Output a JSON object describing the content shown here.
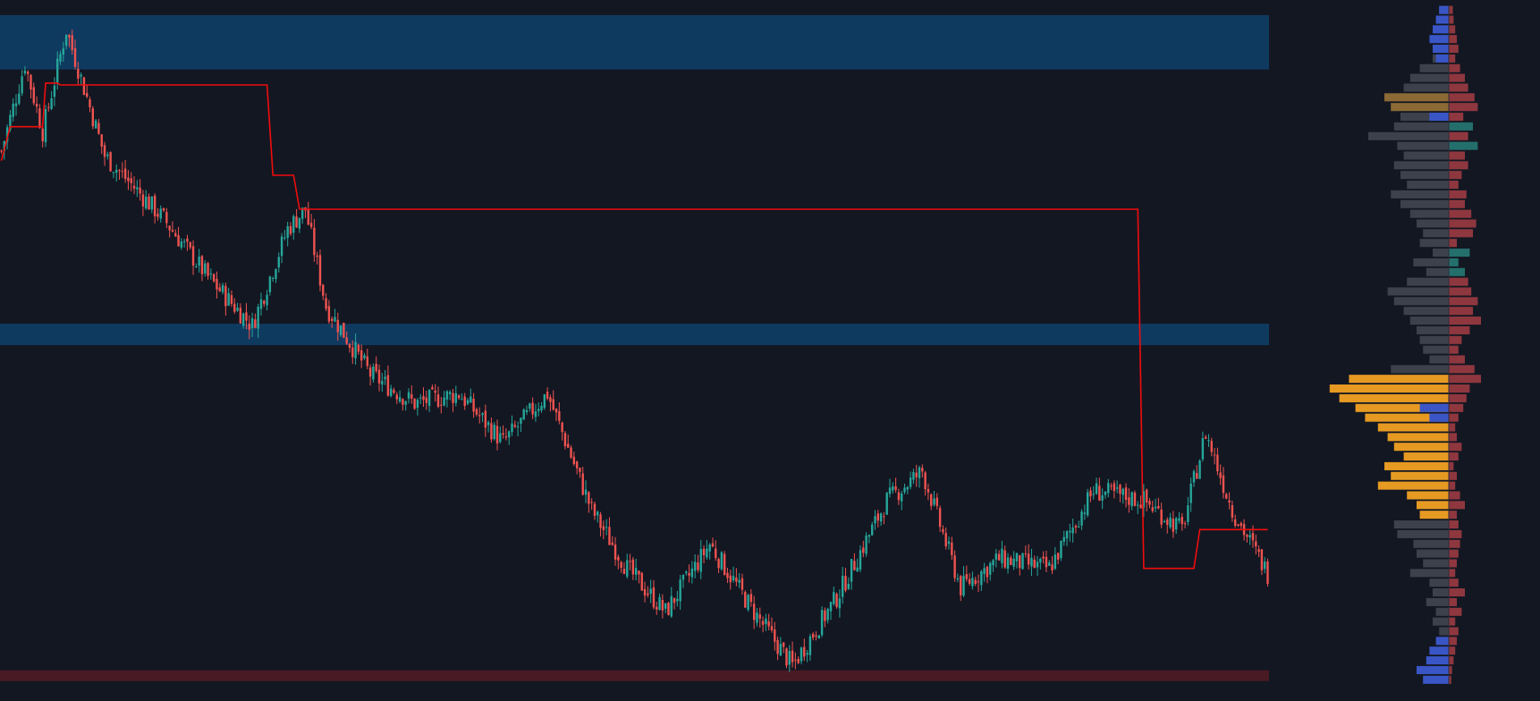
{
  "chart_data": {
    "type": "candlestick",
    "title": "",
    "xlabel": "",
    "ylabel": "",
    "ylim": [
      0,
      700
    ],
    "grid": false,
    "legend": "none",
    "colors": {
      "background": "#131722",
      "up": "#26a69a",
      "down": "#ef5350",
      "stop_line": "#f00c0c",
      "zone_supply": "#0f3a60",
      "zone_demand": "#4a1a24",
      "profile_neutral": "#3d414c",
      "profile_buy": "#3a56c6",
      "profile_sell": "#b94349",
      "profile_up": "#2b8e85",
      "profile_poc_band": "#e69a22",
      "profile_hvn": "#8c6a35"
    },
    "zones": [
      {
        "kind": "supply",
        "top": 690,
        "bottom": 634
      },
      {
        "kind": "supply",
        "top": 372,
        "bottom": 350
      },
      {
        "kind": "demand",
        "top": 15,
        "bottom": 4
      }
    ],
    "price_key_points": [
      {
        "t": 0,
        "p": 550
      },
      {
        "t": 8,
        "p": 640
      },
      {
        "t": 14,
        "p": 570
      },
      {
        "t": 22,
        "p": 675
      },
      {
        "t": 35,
        "p": 545
      },
      {
        "t": 55,
        "p": 480
      },
      {
        "t": 70,
        "p": 420
      },
      {
        "t": 85,
        "p": 370
      },
      {
        "t": 97,
        "p": 470
      },
      {
        "t": 103,
        "p": 490
      },
      {
        "t": 110,
        "p": 390
      },
      {
        "t": 125,
        "p": 320
      },
      {
        "t": 140,
        "p": 290
      },
      {
        "t": 155,
        "p": 300
      },
      {
        "t": 170,
        "p": 250
      },
      {
        "t": 185,
        "p": 300
      },
      {
        "t": 200,
        "p": 180
      },
      {
        "t": 212,
        "p": 120
      },
      {
        "t": 225,
        "p": 75
      },
      {
        "t": 240,
        "p": 145
      },
      {
        "t": 255,
        "p": 75
      },
      {
        "t": 268,
        "p": 20
      },
      {
        "t": 283,
        "p": 90
      },
      {
        "t": 300,
        "p": 190
      },
      {
        "t": 312,
        "p": 220
      },
      {
        "t": 325,
        "p": 100
      },
      {
        "t": 338,
        "p": 130
      },
      {
        "t": 355,
        "p": 120
      },
      {
        "t": 370,
        "p": 200
      },
      {
        "t": 387,
        "p": 190
      },
      {
        "t": 400,
        "p": 160
      },
      {
        "t": 408,
        "p": 260
      },
      {
        "t": 417,
        "p": 180
      },
      {
        "t": 429,
        "p": 115
      }
    ],
    "stop_line": [
      {
        "t": 0,
        "p": 540
      },
      {
        "t": 3,
        "p": 575
      },
      {
        "t": 14,
        "p": 575
      },
      {
        "t": 15,
        "p": 620
      },
      {
        "t": 19,
        "p": 620
      },
      {
        "t": 20,
        "p": 618
      },
      {
        "t": 90,
        "p": 618
      },
      {
        "t": 92,
        "p": 525
      },
      {
        "t": 99,
        "p": 525
      },
      {
        "t": 101,
        "p": 490
      },
      {
        "t": 385,
        "p": 490
      },
      {
        "t": 387,
        "p": 120
      },
      {
        "t": 404,
        "p": 120
      },
      {
        "t": 406,
        "p": 160
      },
      {
        "t": 429,
        "p": 160
      }
    ],
    "volume_profile": {
      "bins": 70,
      "neutral": [
        0.06,
        0.04,
        0.05,
        0.05,
        0.06,
        0.1,
        0.18,
        0.24,
        0.28,
        0.4,
        0.36,
        0.3,
        0.34,
        0.5,
        0.32,
        0.28,
        0.34,
        0.3,
        0.26,
        0.36,
        0.3,
        0.24,
        0.2,
        0.16,
        0.18,
        0.1,
        0.22,
        0.14,
        0.26,
        0.38,
        0.34,
        0.28,
        0.24,
        0.2,
        0.18,
        0.16,
        0.12,
        0.36,
        0.62,
        0.74,
        0.68,
        0.58,
        0.52,
        0.44,
        0.38,
        0.34,
        0.28,
        0.4,
        0.36,
        0.44,
        0.26,
        0.2,
        0.18,
        0.34,
        0.32,
        0.22,
        0.2,
        0.16,
        0.24,
        0.12,
        0.1,
        0.14,
        0.08,
        0.1,
        0.06,
        0.06,
        0.04,
        0.05,
        0.03,
        0.02
      ],
      "buy": [
        0.06,
        0.08,
        0.1,
        0.12,
        0.1,
        0.08,
        0.0,
        0.0,
        0.0,
        0.0,
        0.0,
        0.12,
        0.0,
        0.0,
        0.0,
        0.0,
        0.0,
        0.0,
        0.0,
        0.0,
        0.0,
        0.0,
        0.0,
        0.0,
        0.0,
        0.0,
        0.0,
        0.0,
        0.0,
        0.0,
        0.0,
        0.0,
        0.0,
        0.0,
        0.0,
        0.0,
        0.0,
        0.0,
        0.0,
        0.0,
        0.0,
        0.18,
        0.12,
        0.0,
        0.0,
        0.0,
        0.0,
        0.0,
        0.0,
        0.0,
        0.0,
        0.0,
        0.0,
        0.0,
        0.0,
        0.0,
        0.0,
        0.0,
        0.0,
        0.0,
        0.0,
        0.0,
        0.0,
        0.0,
        0.0,
        0.08,
        0.12,
        0.14,
        0.2,
        0.16
      ],
      "sell": [
        0.05,
        0.06,
        0.08,
        0.1,
        0.12,
        0.08,
        0.14,
        0.2,
        0.24,
        0.32,
        0.36,
        0.18,
        0.3,
        0.24,
        0.36,
        0.2,
        0.24,
        0.16,
        0.12,
        0.22,
        0.2,
        0.28,
        0.34,
        0.3,
        0.1,
        0.26,
        0.12,
        0.2,
        0.24,
        0.28,
        0.36,
        0.3,
        0.4,
        0.26,
        0.16,
        0.12,
        0.2,
        0.32,
        0.4,
        0.26,
        0.22,
        0.18,
        0.12,
        0.08,
        0.1,
        0.16,
        0.12,
        0.06,
        0.1,
        0.08,
        0.14,
        0.2,
        0.1,
        0.12,
        0.16,
        0.14,
        0.12,
        0.1,
        0.08,
        0.12,
        0.2,
        0.1,
        0.16,
        0.08,
        0.12,
        0.1,
        0.08,
        0.06,
        0.04,
        0.03
      ],
      "hvn_bins": [
        38,
        39,
        40,
        41,
        42,
        43,
        44,
        45,
        46,
        47,
        48,
        49,
        50,
        51,
        52
      ],
      "up_bins": [
        12,
        14,
        25,
        26,
        27
      ],
      "mid_hvn_bins": [
        9,
        10
      ]
    }
  }
}
